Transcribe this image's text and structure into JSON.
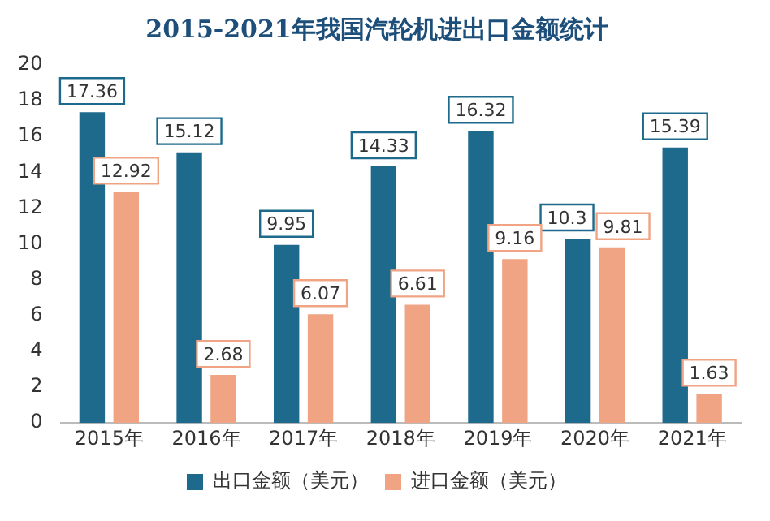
{
  "chart_data": {
    "type": "bar",
    "title": "2015-2021年我国汽轮机进出口金额统计",
    "categories": [
      "2015年",
      "2016年",
      "2017年",
      "2018年",
      "2019年",
      "2020年",
      "2021年"
    ],
    "series": [
      {
        "name": "出口金额（美元）",
        "color": "#1d6a8c",
        "values": [
          17.36,
          15.12,
          9.95,
          14.33,
          16.32,
          10.3,
          15.39
        ]
      },
      {
        "name": "进口金额（美元）",
        "color": "#f0a484",
        "values": [
          12.92,
          2.68,
          6.07,
          6.61,
          9.16,
          9.81,
          1.63
        ]
      }
    ],
    "ylim": [
      0,
      20
    ],
    "yticks": [
      0,
      2,
      4,
      6,
      8,
      10,
      12,
      14,
      16,
      18,
      20
    ],
    "data_labels": true,
    "legend": "bottom",
    "grid": false
  }
}
